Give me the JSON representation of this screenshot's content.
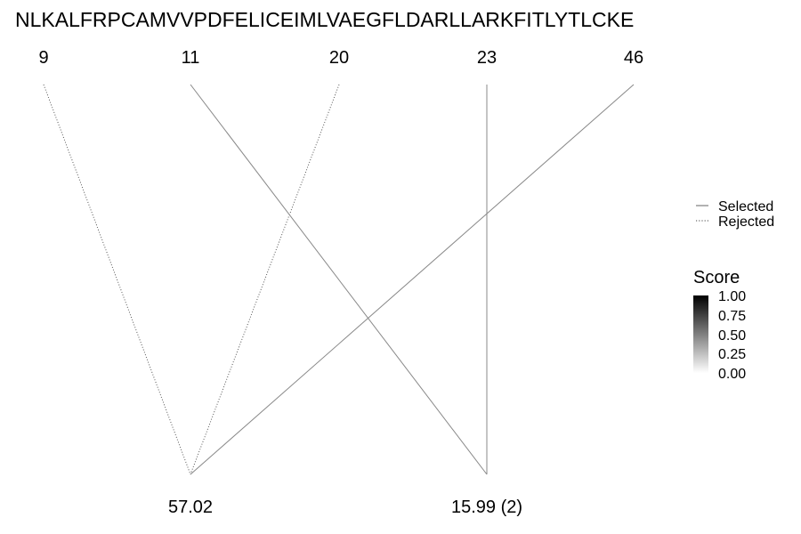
{
  "chart_data": {
    "type": "bipartite-link",
    "sequence": "NLKALFRPCAMVVPDFELICEIMLVAEGFLDARLLARKFITLYTLCKE",
    "positions": [
      "9",
      "11",
      "20",
      "23",
      "46"
    ],
    "masses": [
      "57.02",
      "15.99 (2)"
    ],
    "links": [
      {
        "position": "9",
        "mass": "57.02",
        "status": "Rejected"
      },
      {
        "position": "20",
        "mass": "57.02",
        "status": "Rejected"
      },
      {
        "position": "46",
        "mass": "57.02",
        "status": "Selected"
      },
      {
        "position": "11",
        "mass": "15.99 (2)",
        "status": "Selected"
      },
      {
        "position": "23",
        "mass": "15.99 (2)",
        "status": "Selected"
      }
    ],
    "legend": {
      "linetype": [
        "Selected",
        "Rejected"
      ],
      "score_title": "Score",
      "score_ticks": [
        "1.00",
        "0.75",
        "0.50",
        "0.25",
        "0.00"
      ],
      "score_gradient": [
        "#000000",
        "#ffffff"
      ]
    },
    "line_color": "#888888"
  }
}
